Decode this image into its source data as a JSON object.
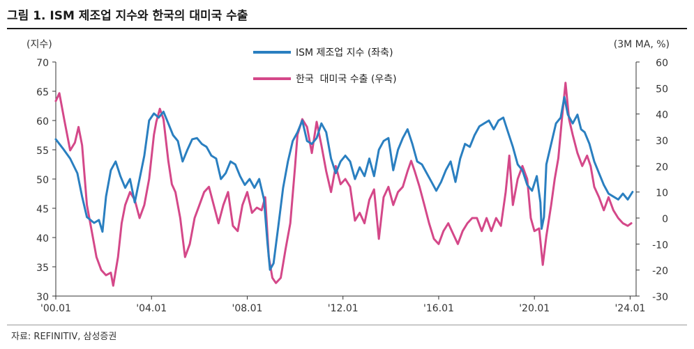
{
  "header": {
    "title": "그림 1. ISM 제조업 지수와 한국의 대미국 수출"
  },
  "footer": {
    "source": "자료: REFINITIV, 삼성증권"
  },
  "colors": {
    "ism": "#2a7fc0",
    "korea": "#d44889",
    "axis": "#333333"
  },
  "chart_data": {
    "type": "line",
    "title": "ISM 제조업 지수와 한국의 대미국 수출",
    "left_axis": {
      "label": "(지수)",
      "min": 30,
      "max": 70,
      "ticks": [
        30,
        35,
        40,
        45,
        50,
        55,
        60,
        65,
        70
      ]
    },
    "right_axis": {
      "label": "(3M MA, %)",
      "min": -30,
      "max": 60,
      "ticks": [
        -30,
        -20,
        -10,
        0,
        10,
        20,
        30,
        40,
        50,
        60
      ]
    },
    "x_axis": {
      "min": 2000.0,
      "max": 2024.25,
      "ticks": [
        2000.0,
        2004.0,
        2008.0,
        2012.0,
        2016.0,
        2020.0,
        2024.0
      ],
      "tick_labels": [
        "'00.01",
        "'04.01",
        "'08.01",
        "'12.01",
        "'16.01",
        "'20.01",
        "'24.01"
      ]
    },
    "grid": false,
    "legend_position": "top-center",
    "series": [
      {
        "name": "ISM 제조업 지수 (좌축)",
        "axis": "left",
        "points": [
          [
            2000.0,
            56.8
          ],
          [
            2000.3,
            55.2
          ],
          [
            2000.6,
            53.5
          ],
          [
            2000.9,
            51.0
          ],
          [
            2001.1,
            47.0
          ],
          [
            2001.3,
            43.5
          ],
          [
            2001.6,
            42.5
          ],
          [
            2001.8,
            43.0
          ],
          [
            2001.95,
            41.0
          ],
          [
            2002.1,
            47.0
          ],
          [
            2002.3,
            51.5
          ],
          [
            2002.5,
            53.0
          ],
          [
            2002.7,
            50.5
          ],
          [
            2002.9,
            48.5
          ],
          [
            2003.1,
            50.0
          ],
          [
            2003.3,
            46.0
          ],
          [
            2003.5,
            50.0
          ],
          [
            2003.7,
            54.0
          ],
          [
            2003.9,
            60.0
          ],
          [
            2004.1,
            61.2
          ],
          [
            2004.3,
            60.5
          ],
          [
            2004.5,
            61.5
          ],
          [
            2004.7,
            59.5
          ],
          [
            2004.9,
            57.5
          ],
          [
            2005.1,
            56.5
          ],
          [
            2005.3,
            53.0
          ],
          [
            2005.5,
            55.0
          ],
          [
            2005.7,
            56.8
          ],
          [
            2005.9,
            57.0
          ],
          [
            2006.1,
            56.0
          ],
          [
            2006.3,
            55.5
          ],
          [
            2006.5,
            54.0
          ],
          [
            2006.7,
            53.5
          ],
          [
            2006.9,
            50.0
          ],
          [
            2007.1,
            51.0
          ],
          [
            2007.3,
            53.0
          ],
          [
            2007.5,
            52.5
          ],
          [
            2007.7,
            50.5
          ],
          [
            2007.9,
            49.0
          ],
          [
            2008.1,
            50.0
          ],
          [
            2008.3,
            48.5
          ],
          [
            2008.5,
            50.0
          ],
          [
            2008.7,
            46.5
          ],
          [
            2008.85,
            38.9
          ],
          [
            2008.95,
            34.5
          ],
          [
            2009.1,
            35.6
          ],
          [
            2009.3,
            42.0
          ],
          [
            2009.5,
            48.5
          ],
          [
            2009.7,
            53.0
          ],
          [
            2009.9,
            56.5
          ],
          [
            2010.1,
            58.0
          ],
          [
            2010.3,
            60.0
          ],
          [
            2010.5,
            56.5
          ],
          [
            2010.7,
            56.0
          ],
          [
            2010.9,
            57.0
          ],
          [
            2011.1,
            59.5
          ],
          [
            2011.3,
            58.0
          ],
          [
            2011.5,
            53.5
          ],
          [
            2011.7,
            51.0
          ],
          [
            2011.9,
            53.0
          ],
          [
            2012.1,
            54.0
          ],
          [
            2012.3,
            53.0
          ],
          [
            2012.5,
            50.0
          ],
          [
            2012.7,
            52.0
          ],
          [
            2012.9,
            50.5
          ],
          [
            2013.1,
            53.5
          ],
          [
            2013.3,
            50.5
          ],
          [
            2013.5,
            55.0
          ],
          [
            2013.7,
            56.5
          ],
          [
            2013.9,
            57.0
          ],
          [
            2014.1,
            51.5
          ],
          [
            2014.3,
            55.0
          ],
          [
            2014.5,
            57.0
          ],
          [
            2014.7,
            58.5
          ],
          [
            2014.9,
            56.0
          ],
          [
            2015.1,
            53.0
          ],
          [
            2015.3,
            52.5
          ],
          [
            2015.5,
            51.0
          ],
          [
            2015.7,
            49.5
          ],
          [
            2015.9,
            48.0
          ],
          [
            2016.1,
            49.5
          ],
          [
            2016.3,
            51.5
          ],
          [
            2016.5,
            53.0
          ],
          [
            2016.7,
            49.5
          ],
          [
            2016.9,
            53.5
          ],
          [
            2017.1,
            56.0
          ],
          [
            2017.3,
            55.5
          ],
          [
            2017.5,
            57.5
          ],
          [
            2017.7,
            59.0
          ],
          [
            2017.9,
            59.5
          ],
          [
            2018.1,
            60.0
          ],
          [
            2018.3,
            58.5
          ],
          [
            2018.5,
            60.0
          ],
          [
            2018.7,
            60.5
          ],
          [
            2018.9,
            58.0
          ],
          [
            2019.1,
            55.5
          ],
          [
            2019.3,
            52.5
          ],
          [
            2019.5,
            51.5
          ],
          [
            2019.7,
            49.0
          ],
          [
            2019.9,
            48.0
          ],
          [
            2020.1,
            50.5
          ],
          [
            2020.25,
            46.0
          ],
          [
            2020.3,
            41.5
          ],
          [
            2020.4,
            43.5
          ],
          [
            2020.5,
            52.5
          ],
          [
            2020.7,
            56.0
          ],
          [
            2020.9,
            59.5
          ],
          [
            2021.1,
            60.5
          ],
          [
            2021.25,
            64.0
          ],
          [
            2021.4,
            61.0
          ],
          [
            2021.6,
            59.5
          ],
          [
            2021.8,
            61.0
          ],
          [
            2021.95,
            58.5
          ],
          [
            2022.1,
            58.0
          ],
          [
            2022.3,
            56.0
          ],
          [
            2022.5,
            53.0
          ],
          [
            2022.7,
            51.0
          ],
          [
            2022.9,
            49.0
          ],
          [
            2023.1,
            47.5
          ],
          [
            2023.3,
            47.0
          ],
          [
            2023.5,
            46.5
          ],
          [
            2023.7,
            47.5
          ],
          [
            2023.9,
            46.5
          ],
          [
            2024.1,
            47.8
          ]
        ]
      },
      {
        "name": "한국  대미국 수출 (우측)",
        "axis": "right",
        "points": [
          [
            2000.0,
            45.0
          ],
          [
            2000.15,
            48.0
          ],
          [
            2000.35,
            38.0
          ],
          [
            2000.6,
            26.0
          ],
          [
            2000.8,
            29.0
          ],
          [
            2000.95,
            35.0
          ],
          [
            2001.1,
            28.0
          ],
          [
            2001.3,
            5.0
          ],
          [
            2001.5,
            -5.0
          ],
          [
            2001.7,
            -15.0
          ],
          [
            2001.9,
            -20.0
          ],
          [
            2002.1,
            -22.0
          ],
          [
            2002.3,
            -21.0
          ],
          [
            2002.4,
            -26.0
          ],
          [
            2002.6,
            -15.0
          ],
          [
            2002.75,
            -2.0
          ],
          [
            2002.9,
            5.0
          ],
          [
            2003.1,
            10.0
          ],
          [
            2003.3,
            7.0
          ],
          [
            2003.5,
            0.0
          ],
          [
            2003.7,
            5.0
          ],
          [
            2003.9,
            15.0
          ],
          [
            2004.1,
            32.0
          ],
          [
            2004.2,
            37.0
          ],
          [
            2004.35,
            42.0
          ],
          [
            2004.5,
            38.0
          ],
          [
            2004.7,
            22.0
          ],
          [
            2004.85,
            13.0
          ],
          [
            2005.0,
            10.0
          ],
          [
            2005.2,
            0.0
          ],
          [
            2005.4,
            -15.0
          ],
          [
            2005.6,
            -10.0
          ],
          [
            2005.8,
            0.0
          ],
          [
            2006.0,
            5.0
          ],
          [
            2006.2,
            10.0
          ],
          [
            2006.4,
            12.0
          ],
          [
            2006.6,
            5.0
          ],
          [
            2006.8,
            -2.0
          ],
          [
            2007.0,
            5.0
          ],
          [
            2007.2,
            10.0
          ],
          [
            2007.4,
            -3.0
          ],
          [
            2007.6,
            -5.0
          ],
          [
            2007.8,
            5.0
          ],
          [
            2008.0,
            10.0
          ],
          [
            2008.2,
            2.0
          ],
          [
            2008.4,
            4.0
          ],
          [
            2008.6,
            3.0
          ],
          [
            2008.75,
            8.0
          ],
          [
            2008.9,
            -15.0
          ],
          [
            2009.05,
            -23.0
          ],
          [
            2009.2,
            -25.0
          ],
          [
            2009.4,
            -23.0
          ],
          [
            2009.6,
            -12.0
          ],
          [
            2009.8,
            -2.0
          ],
          [
            2010.0,
            20.0
          ],
          [
            2010.1,
            32.0
          ],
          [
            2010.3,
            38.0
          ],
          [
            2010.5,
            35.0
          ],
          [
            2010.7,
            25.0
          ],
          [
            2010.9,
            37.0
          ],
          [
            2011.1,
            28.0
          ],
          [
            2011.3,
            18.0
          ],
          [
            2011.5,
            10.0
          ],
          [
            2011.7,
            20.0
          ],
          [
            2011.9,
            13.0
          ],
          [
            2012.1,
            15.0
          ],
          [
            2012.3,
            12.0
          ],
          [
            2012.5,
            -1.0
          ],
          [
            2012.7,
            2.0
          ],
          [
            2012.9,
            -2.0
          ],
          [
            2013.1,
            7.0
          ],
          [
            2013.3,
            11.0
          ],
          [
            2013.5,
            -8.0
          ],
          [
            2013.7,
            8.0
          ],
          [
            2013.9,
            12.0
          ],
          [
            2014.1,
            5.0
          ],
          [
            2014.3,
            10.0
          ],
          [
            2014.5,
            12.0
          ],
          [
            2014.7,
            18.0
          ],
          [
            2014.85,
            22.0
          ],
          [
            2015.0,
            18.0
          ],
          [
            2015.2,
            12.0
          ],
          [
            2015.4,
            5.0
          ],
          [
            2015.6,
            -2.0
          ],
          [
            2015.8,
            -8.0
          ],
          [
            2016.0,
            -10.0
          ],
          [
            2016.2,
            -5.0
          ],
          [
            2016.4,
            -2.0
          ],
          [
            2016.6,
            -6.0
          ],
          [
            2016.8,
            -10.0
          ],
          [
            2017.0,
            -5.0
          ],
          [
            2017.2,
            -2.0
          ],
          [
            2017.4,
            0.0
          ],
          [
            2017.6,
            0.0
          ],
          [
            2017.8,
            -5.0
          ],
          [
            2018.0,
            0.0
          ],
          [
            2018.2,
            -5.0
          ],
          [
            2018.4,
            0.0
          ],
          [
            2018.6,
            -3.0
          ],
          [
            2018.8,
            10.0
          ],
          [
            2018.95,
            24.0
          ],
          [
            2019.1,
            5.0
          ],
          [
            2019.3,
            15.0
          ],
          [
            2019.5,
            20.0
          ],
          [
            2019.7,
            15.0
          ],
          [
            2019.85,
            0.0
          ],
          [
            2020.0,
            -5.0
          ],
          [
            2020.2,
            -4.0
          ],
          [
            2020.35,
            -18.0
          ],
          [
            2020.5,
            -7.0
          ],
          [
            2020.7,
            5.0
          ],
          [
            2020.85,
            15.0
          ],
          [
            2021.0,
            23.0
          ],
          [
            2021.15,
            38.0
          ],
          [
            2021.3,
            52.0
          ],
          [
            2021.45,
            38.0
          ],
          [
            2021.6,
            32.0
          ],
          [
            2021.8,
            25.0
          ],
          [
            2022.0,
            20.0
          ],
          [
            2022.2,
            24.0
          ],
          [
            2022.35,
            20.0
          ],
          [
            2022.5,
            12.0
          ],
          [
            2022.7,
            8.0
          ],
          [
            2022.9,
            3.0
          ],
          [
            2023.1,
            8.0
          ],
          [
            2023.3,
            3.0
          ],
          [
            2023.5,
            0.0
          ],
          [
            2023.7,
            -2.0
          ],
          [
            2023.9,
            -3.0
          ],
          [
            2024.05,
            -2.0
          ]
        ]
      }
    ]
  }
}
